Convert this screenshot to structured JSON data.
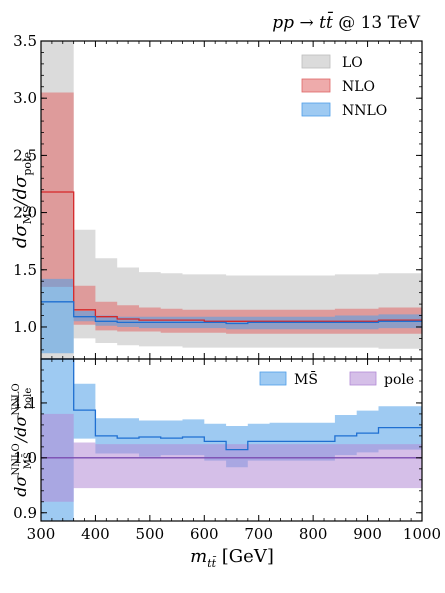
{
  "process_label": "pp → t t̄ @ 13 TeV",
  "chart_data": [
    {
      "type": "area",
      "panel": "top",
      "ylabel": "dσ_MS̄ / dσ_pole",
      "xlim": [
        300,
        1000
      ],
      "ylim": [
        0.72,
        3.5
      ],
      "xticks": [
        300,
        400,
        500,
        600,
        700,
        800,
        900,
        1000
      ],
      "yticks": [
        1.0,
        1.5,
        2.0,
        2.5,
        3.0,
        3.5
      ],
      "ytick_labels": [
        "1.0",
        "1.5",
        "2.0",
        "2.5",
        "3.0",
        "3.5"
      ],
      "grid": false,
      "legend_position": "top-right",
      "bin_edges": [
        300,
        360,
        400,
        440,
        480,
        520,
        560,
        600,
        640,
        680,
        720,
        760,
        800,
        840,
        880,
        920,
        1000
      ],
      "series": [
        {
          "name": "LO",
          "color": "#bdbdbd",
          "central_line": false,
          "lower": [
            0.7,
            0.9,
            0.86,
            0.84,
            0.83,
            0.83,
            0.82,
            0.82,
            0.82,
            0.82,
            0.82,
            0.82,
            0.82,
            0.82,
            0.82,
            0.81
          ],
          "upper": [
            3.5,
            1.85,
            1.6,
            1.52,
            1.48,
            1.47,
            1.46,
            1.46,
            1.45,
            1.45,
            1.45,
            1.45,
            1.45,
            1.46,
            1.46,
            1.47
          ],
          "central": [
            1.45,
            1.28,
            1.2,
            1.17,
            1.16,
            1.15,
            1.14,
            1.14,
            1.13,
            1.13,
            1.13,
            1.13,
            1.13,
            1.13,
            1.13,
            1.13
          ]
        },
        {
          "name": "NLO",
          "color": "#e06666",
          "central_line": true,
          "lower": [
            1.35,
            1.02,
            0.97,
            0.96,
            0.96,
            0.95,
            0.95,
            0.95,
            0.94,
            0.94,
            0.94,
            0.94,
            0.94,
            0.94,
            0.94,
            0.94
          ],
          "upper": [
            3.05,
            1.36,
            1.22,
            1.19,
            1.17,
            1.16,
            1.15,
            1.15,
            1.15,
            1.15,
            1.15,
            1.15,
            1.15,
            1.16,
            1.16,
            1.17
          ],
          "central": [
            2.18,
            1.15,
            1.09,
            1.07,
            1.06,
            1.06,
            1.06,
            1.05,
            1.05,
            1.05,
            1.05,
            1.05,
            1.05,
            1.05,
            1.05,
            1.06
          ]
        },
        {
          "name": "NNLO",
          "color": "#4f9ee8",
          "central_line": true,
          "lower": [
            0.77,
            1.05,
            1.01,
            1.0,
            0.99,
            0.99,
            0.99,
            0.99,
            0.98,
            0.98,
            0.98,
            0.98,
            0.98,
            0.98,
            0.98,
            0.99
          ],
          "upper": [
            1.42,
            1.14,
            1.1,
            1.09,
            1.09,
            1.09,
            1.09,
            1.09,
            1.09,
            1.09,
            1.09,
            1.09,
            1.09,
            1.1,
            1.1,
            1.11
          ],
          "central": [
            1.22,
            1.09,
            1.05,
            1.04,
            1.04,
            1.04,
            1.04,
            1.04,
            1.03,
            1.04,
            1.04,
            1.04,
            1.04,
            1.04,
            1.04,
            1.05
          ]
        }
      ]
    },
    {
      "type": "area",
      "panel": "bottom",
      "xlabel": "m_tt̄ [GeV]",
      "ylabel": "dσ^NNLO_MS̄ / dσ^NNLO_pole",
      "xlim": [
        300,
        1000
      ],
      "ylim": [
        0.885,
        1.18
      ],
      "xticks": [
        300,
        400,
        500,
        600,
        700,
        800,
        900,
        1000
      ],
      "yticks": [
        0.9,
        1.0,
        1.1
      ],
      "ytick_labels": [
        "0.9",
        "1.0",
        "1.1"
      ],
      "grid": false,
      "legend_position": "top-right",
      "bin_edges": [
        300,
        360,
        400,
        440,
        480,
        520,
        560,
        600,
        640,
        680,
        720,
        760,
        800,
        840,
        880,
        920,
        1000
      ],
      "series": [
        {
          "name": "MS̄",
          "color": "#4f9ee8",
          "central_line": true,
          "lower": [
            0.76,
            1.035,
            1.008,
            1.008,
            1.002,
            1.005,
            1.005,
            0.995,
            0.983,
            0.995,
            0.995,
            0.995,
            0.995,
            1.005,
            1.01,
            1.015
          ],
          "upper": [
            1.18,
            1.135,
            1.072,
            1.072,
            1.068,
            1.068,
            1.07,
            1.062,
            1.058,
            1.062,
            1.064,
            1.064,
            1.064,
            1.078,
            1.086,
            1.094
          ],
          "central": [
            1.18,
            1.087,
            1.04,
            1.036,
            1.038,
            1.036,
            1.038,
            1.03,
            1.015,
            1.03,
            1.03,
            1.03,
            1.03,
            1.04,
            1.045,
            1.055
          ]
        },
        {
          "name": "pole",
          "color": "#b28ad6",
          "central_line": true,
          "lower": [
            0.92,
            0.945,
            0.945,
            0.945,
            0.945,
            0.945,
            0.945,
            0.945,
            0.945,
            0.945,
            0.945,
            0.945,
            0.945,
            0.945,
            0.945,
            0.945
          ],
          "upper": [
            1.08,
            1.028,
            1.025,
            1.025,
            1.025,
            1.025,
            1.025,
            1.025,
            1.025,
            1.025,
            1.025,
            1.025,
            1.025,
            1.025,
            1.025,
            1.025
          ],
          "central": [
            1.0,
            1.0,
            1.0,
            1.0,
            1.0,
            1.0,
            1.0,
            1.0,
            1.0,
            1.0,
            1.0,
            1.0,
            1.0,
            1.0,
            1.0,
            1.0
          ]
        }
      ]
    }
  ]
}
